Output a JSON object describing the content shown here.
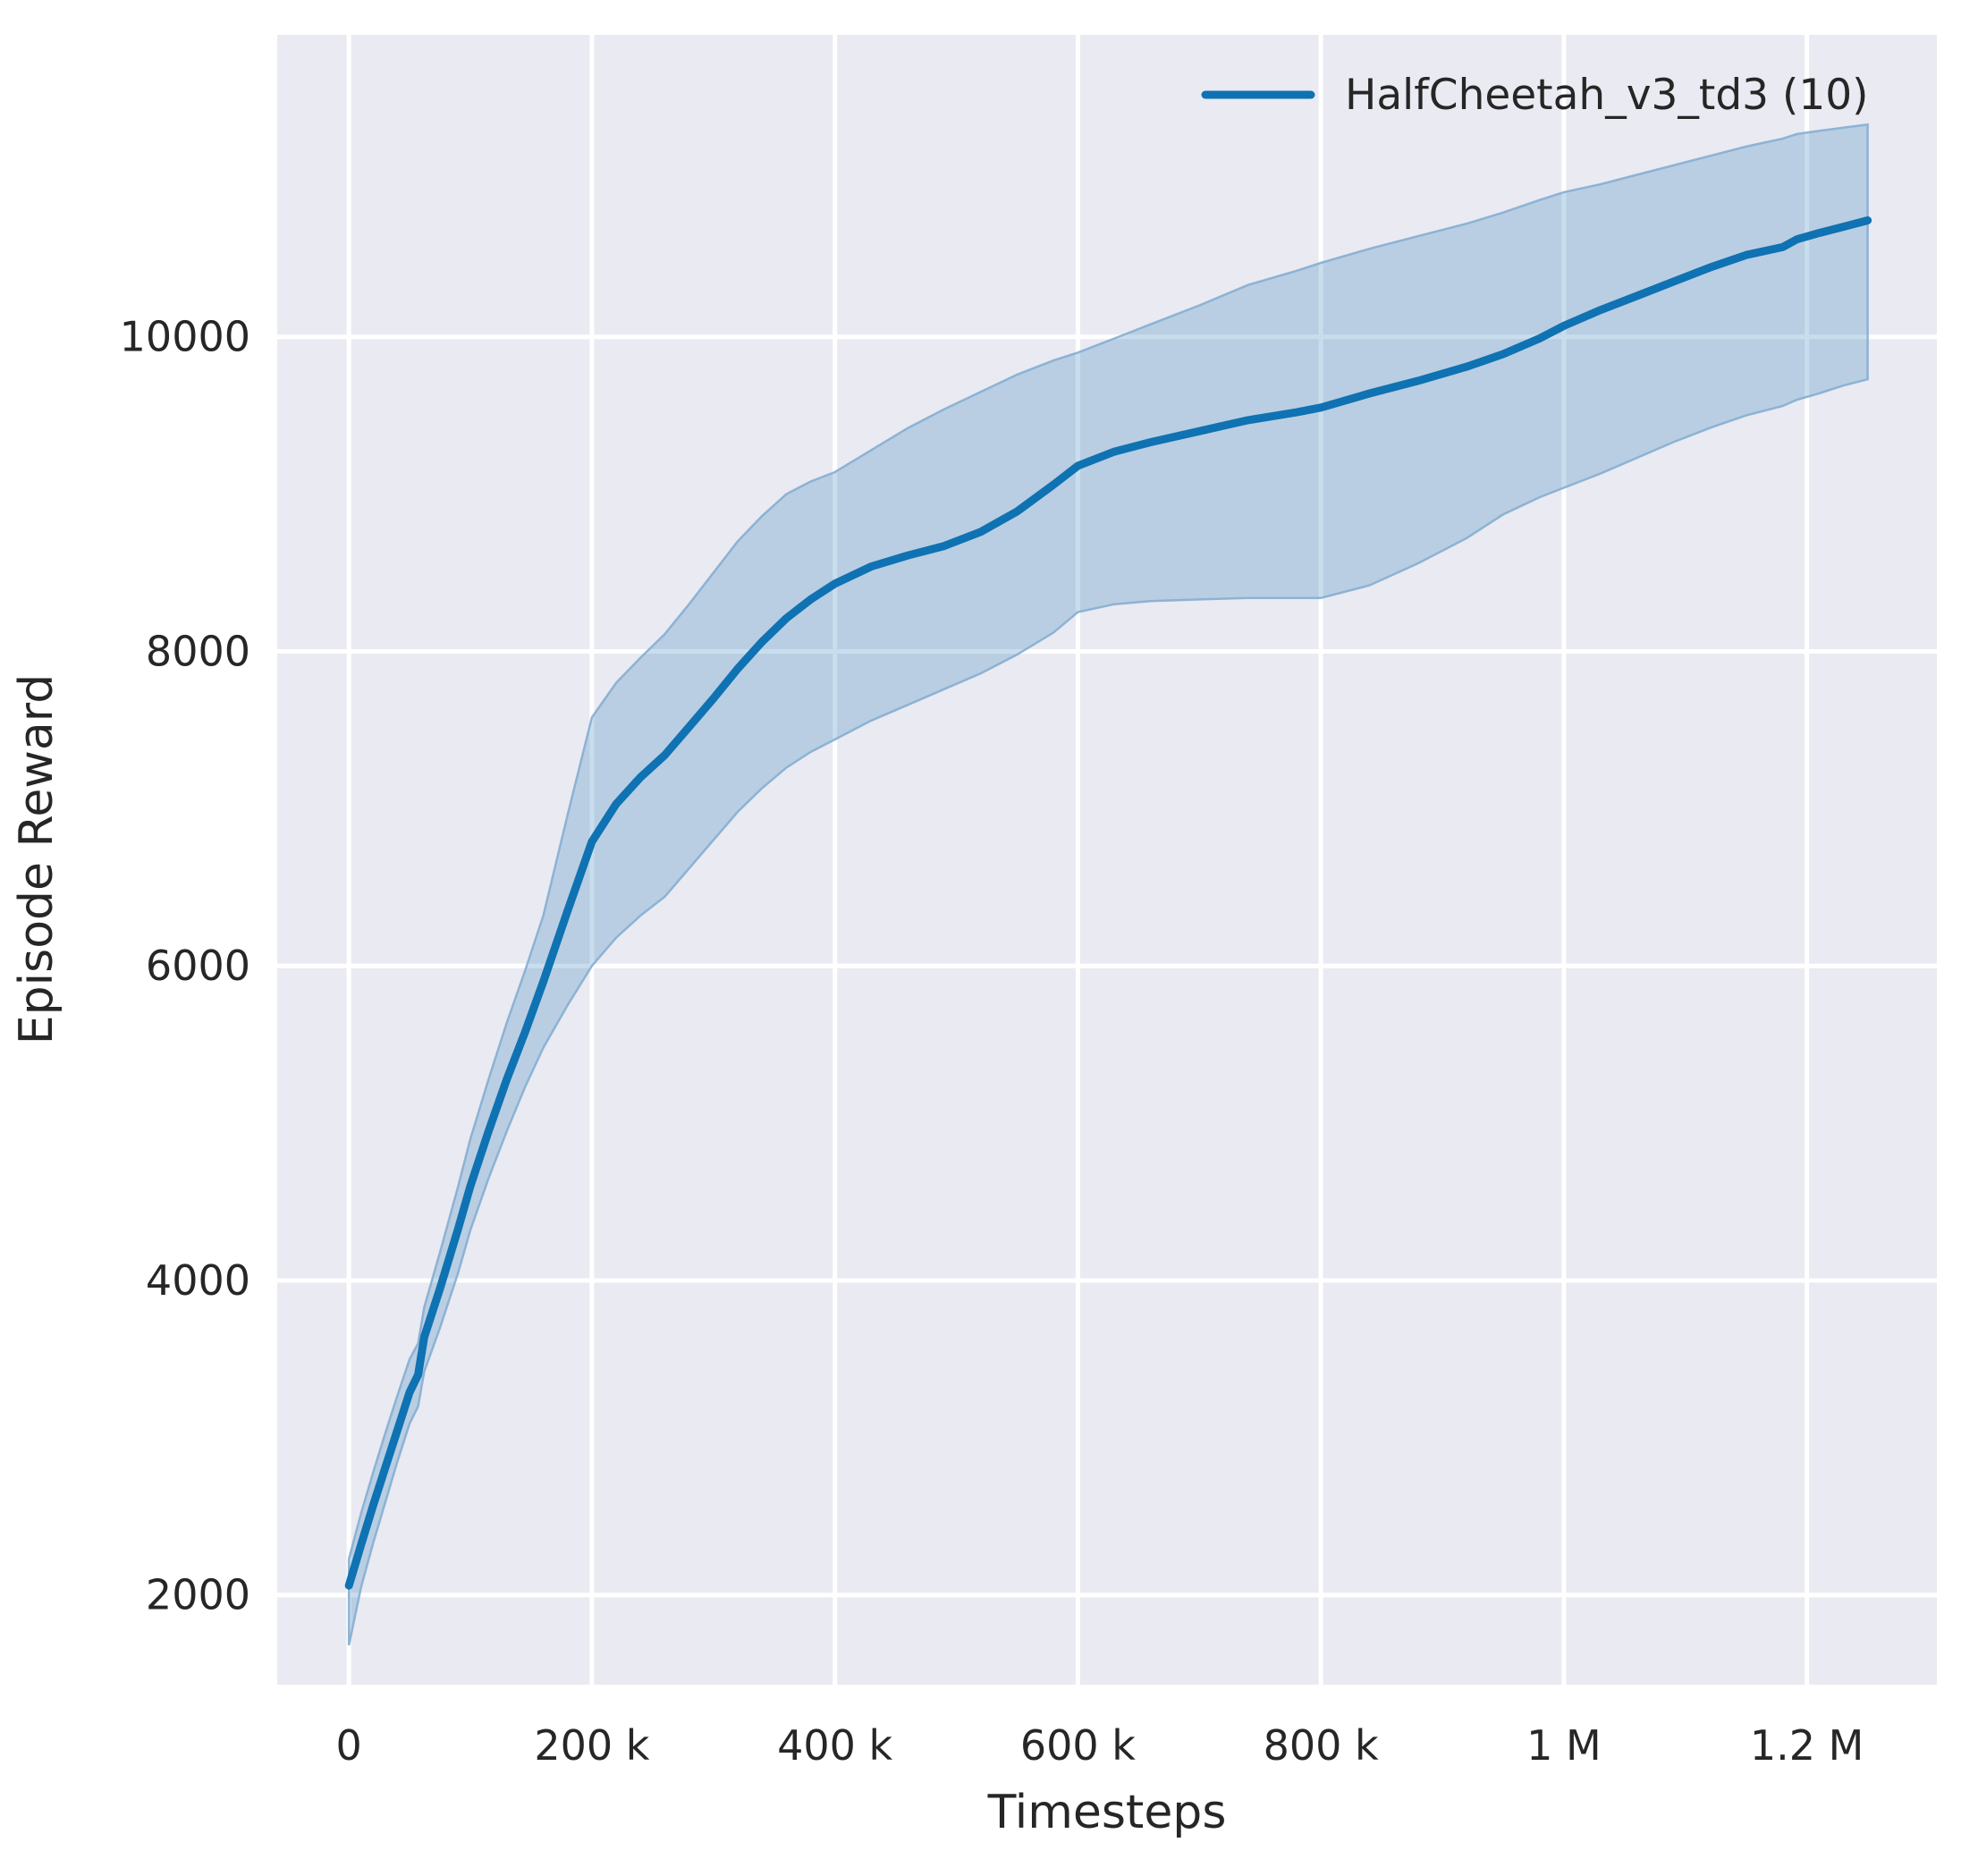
{
  "figure": {
    "background": "#ffffff",
    "axes_background": "#eaeaf2",
    "grid_color": "#ffffff",
    "text_color": "#262626"
  },
  "legend": {
    "label": "HalfCheetah_v3_td3 (10)",
    "line_color": "#0f72b2",
    "position": "upper right"
  },
  "chart_data": {
    "type": "line",
    "title": "",
    "xlabel": "Timesteps",
    "ylabel": "Episode Reward",
    "grid": true,
    "xlim": [
      -59000,
      1307000
    ],
    "ylim": [
      1430,
      11920
    ],
    "xticks": [
      {
        "value": 0,
        "label": "0"
      },
      {
        "value": 200000,
        "label": "200 k"
      },
      {
        "value": 400000,
        "label": "400 k"
      },
      {
        "value": 600000,
        "label": "600 k"
      },
      {
        "value": 800000,
        "label": "800 k"
      },
      {
        "value": 1000000,
        "label": "1 M"
      },
      {
        "value": 1200000,
        "label": "1.2 M"
      }
    ],
    "yticks": [
      {
        "value": 2000,
        "label": "2000"
      },
      {
        "value": 4000,
        "label": "4000"
      },
      {
        "value": 6000,
        "label": "6000"
      },
      {
        "value": 8000,
        "label": "8000"
      },
      {
        "value": 10000,
        "label": "10000"
      }
    ],
    "series": [
      {
        "name": "HalfCheetah_v3_td3 (10)",
        "color": "#0f72b2",
        "band_fill": "#1f77b4",
        "band_opacity": 0.24,
        "band_edge": "#85aed2",
        "x": [
          0,
          10000,
          20000,
          30000,
          40000,
          50000,
          57000,
          62000,
          75000,
          90000,
          100000,
          115000,
          130000,
          145000,
          160000,
          180000,
          200000,
          220000,
          240000,
          260000,
          280000,
          300000,
          320000,
          340000,
          360000,
          380000,
          400000,
          430000,
          460000,
          490000,
          520000,
          550000,
          580000,
          600000,
          630000,
          660000,
          700000,
          740000,
          780000,
          800000,
          840000,
          880000,
          920000,
          950000,
          980000,
          1000000,
          1030000,
          1060000,
          1090000,
          1120000,
          1150000,
          1180000,
          1192000,
          1210000,
          1230000,
          1250000
        ],
        "mean": [
          2060,
          2320,
          2570,
          2810,
          3050,
          3290,
          3400,
          3640,
          3950,
          4330,
          4600,
          4950,
          5280,
          5580,
          5900,
          6350,
          6790,
          7030,
          7200,
          7340,
          7520,
          7700,
          7890,
          8060,
          8210,
          8330,
          8430,
          8540,
          8610,
          8670,
          8760,
          8890,
          9060,
          9180,
          9270,
          9330,
          9400,
          9470,
          9520,
          9550,
          9640,
          9720,
          9810,
          9890,
          9990,
          10070,
          10170,
          10260,
          10350,
          10440,
          10520,
          10570,
          10620,
          10660,
          10700,
          10740
        ],
        "lower": [
          1680,
          2050,
          2330,
          2590,
          2850,
          3090,
          3200,
          3420,
          3700,
          4050,
          4320,
          4650,
          4950,
          5230,
          5480,
          5750,
          6000,
          6180,
          6320,
          6440,
          6620,
          6800,
          6980,
          7130,
          7260,
          7360,
          7440,
          7560,
          7660,
          7760,
          7860,
          7980,
          8120,
          8250,
          8300,
          8320,
          8330,
          8340,
          8340,
          8340,
          8420,
          8560,
          8720,
          8870,
          8980,
          9040,
          9130,
          9230,
          9330,
          9420,
          9500,
          9560,
          9600,
          9640,
          9690,
          9730
        ],
        "upper": [
          2230,
          2520,
          2780,
          3030,
          3270,
          3500,
          3600,
          3830,
          4180,
          4600,
          4900,
          5280,
          5640,
          5970,
          6320,
          6960,
          7580,
          7800,
          7960,
          8110,
          8300,
          8500,
          8700,
          8860,
          9000,
          9080,
          9140,
          9280,
          9420,
          9540,
          9650,
          9760,
          9850,
          9900,
          9990,
          10080,
          10200,
          10330,
          10420,
          10470,
          10560,
          10640,
          10720,
          10790,
          10870,
          10920,
          10970,
          11030,
          11090,
          11150,
          11210,
          11260,
          11290,
          11310,
          11330,
          11350
        ]
      }
    ]
  }
}
